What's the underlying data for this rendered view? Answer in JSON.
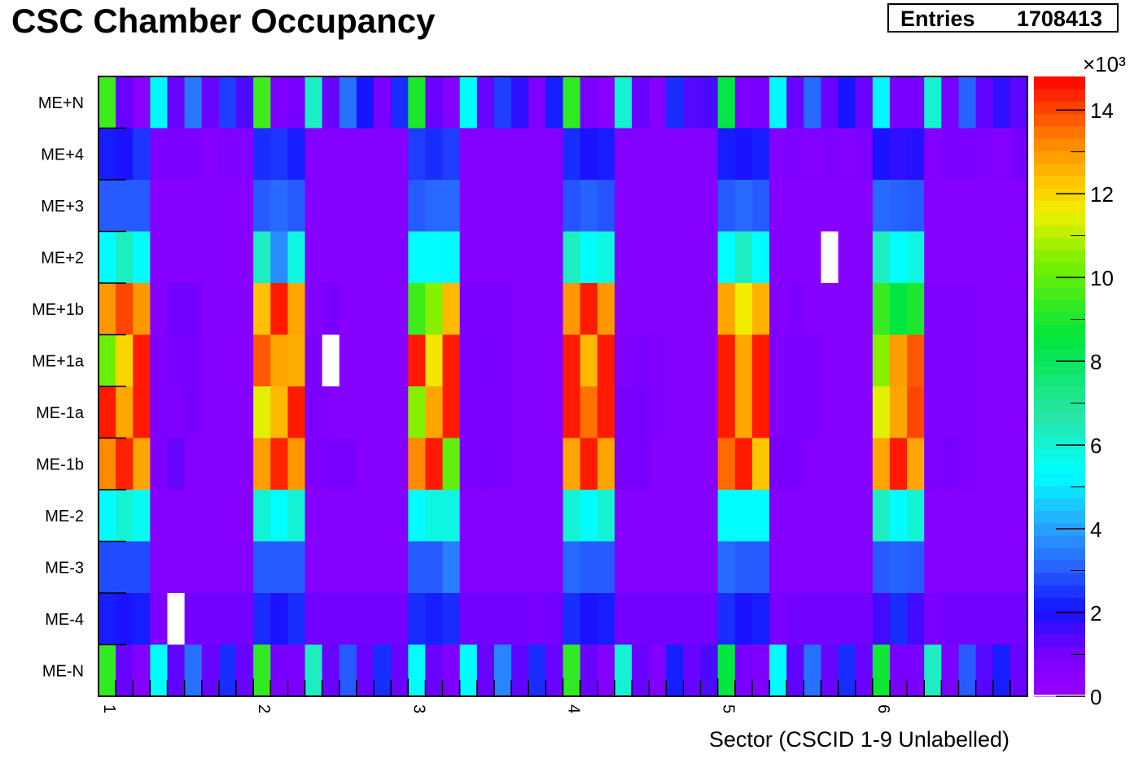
{
  "chart_data": {
    "type": "heatmap",
    "title": "CSC Chamber Occupancy",
    "stats": {
      "label": "Entries",
      "value": "1708413"
    },
    "xlabel": "Sector (CSCID 1-9 Unlabelled)",
    "x_tick_labels": [
      "1",
      "2",
      "3",
      "4",
      "5",
      "6"
    ],
    "y_labels": [
      "ME+N",
      "ME+4",
      "ME+3",
      "ME+2",
      "ME+1b",
      "ME+1a",
      "ME-1a",
      "ME-1b",
      "ME-2",
      "ME-3",
      "ME-4",
      "ME-N"
    ],
    "n_columns": 54,
    "z_scale_label": "×10³",
    "z_range": [
      0,
      14800
    ],
    "z_ticks": [
      0,
      2,
      4,
      6,
      8,
      10,
      12,
      14
    ],
    "values_note": "rows listed top to bottom (ME+N first), columns left to right (sector 1 CSCID 1 to sector 6 CSCID 9); null = empty bin",
    "values": [
      [
        9500,
        1200,
        500,
        5200,
        1200,
        3400,
        1200,
        2600,
        1500,
        9500,
        800,
        1000,
        6200,
        1200,
        3300,
        2100,
        1000,
        2400,
        9000,
        1200,
        700,
        5300,
        1200,
        2600,
        1800,
        800,
        2200,
        9300,
        1000,
        500,
        6000,
        1200,
        700,
        2400,
        1400,
        1500,
        8400,
        800,
        1000,
        5200,
        1200,
        3200,
        1200,
        2100,
        1200,
        5200,
        1000,
        1000,
        6000,
        1000,
        3100,
        1300,
        1800,
        1300
      ],
      [
        2200,
        2000,
        2500,
        900,
        900,
        900,
        600,
        800,
        800,
        2400,
        2500,
        2200,
        700,
        700,
        700,
        700,
        700,
        700,
        2600,
        2400,
        2600,
        700,
        700,
        700,
        700,
        700,
        700,
        2400,
        2000,
        2200,
        700,
        700,
        700,
        700,
        700,
        700,
        2200,
        2000,
        2200,
        700,
        800,
        700,
        800,
        700,
        800,
        2000,
        1800,
        1900,
        700,
        900,
        900,
        800,
        700,
        1000
      ],
      [
        3000,
        3000,
        3000,
        600,
        600,
        600,
        600,
        600,
        600,
        3000,
        3200,
        3000,
        600,
        600,
        600,
        600,
        600,
        600,
        3000,
        3200,
        3200,
        600,
        600,
        600,
        600,
        600,
        600,
        2900,
        3100,
        2900,
        600,
        600,
        600,
        600,
        600,
        600,
        3000,
        3200,
        3000,
        600,
        600,
        600,
        600,
        600,
        600,
        3200,
        3100,
        3000,
        600,
        600,
        600,
        600,
        600,
        600
      ],
      [
        5300,
        6300,
        5300,
        600,
        600,
        600,
        600,
        600,
        600,
        6300,
        3700,
        5800,
        600,
        600,
        600,
        600,
        600,
        600,
        5300,
        5300,
        5300,
        600,
        600,
        600,
        600,
        600,
        600,
        6300,
        5300,
        5800,
        600,
        600,
        600,
        600,
        600,
        600,
        5300,
        6300,
        5300,
        600,
        600,
        600,
        null,
        600,
        600,
        6300,
        5300,
        5800,
        600,
        600,
        600,
        600,
        600,
        600
      ],
      [
        13000,
        14000,
        13000,
        700,
        1100,
        1100,
        600,
        600,
        600,
        12400,
        14500,
        12800,
        700,
        1000,
        600,
        600,
        600,
        600,
        9500,
        10500,
        12500,
        900,
        900,
        900,
        600,
        600,
        600,
        13000,
        14500,
        13000,
        600,
        600,
        600,
        600,
        600,
        600,
        12800,
        11600,
        12600,
        700,
        900,
        600,
        600,
        600,
        600,
        9400,
        8500,
        9000,
        800,
        800,
        800,
        600,
        600,
        600
      ],
      [
        10200,
        12000,
        14500,
        800,
        1000,
        1000,
        600,
        600,
        600,
        13800,
        12800,
        12700,
        900,
        null,
        600,
        600,
        600,
        600,
        14500,
        11800,
        14500,
        900,
        1000,
        900,
        600,
        600,
        600,
        14500,
        12500,
        14500,
        800,
        900,
        800,
        600,
        600,
        600,
        14500,
        12800,
        14500,
        800,
        900,
        900,
        600,
        600,
        600,
        10500,
        12900,
        13800,
        800,
        800,
        800,
        600,
        600,
        600
      ],
      [
        14500,
        12800,
        14500,
        800,
        800,
        1000,
        600,
        600,
        600,
        11400,
        12500,
        14500,
        900,
        700,
        700,
        600,
        600,
        600,
        10500,
        12800,
        14500,
        900,
        900,
        900,
        600,
        600,
        600,
        14500,
        13500,
        14500,
        1000,
        1000,
        800,
        600,
        600,
        600,
        14500,
        12800,
        14500,
        800,
        900,
        900,
        600,
        600,
        600,
        11400,
        12800,
        14000,
        800,
        800,
        800,
        600,
        600,
        600
      ],
      [
        13200,
        14400,
        12800,
        800,
        1200,
        700,
        600,
        600,
        600,
        12900,
        14400,
        13000,
        800,
        1000,
        1000,
        600,
        600,
        600,
        13200,
        14500,
        10000,
        900,
        1000,
        900,
        700,
        700,
        600,
        12800,
        14500,
        12800,
        1000,
        1000,
        700,
        600,
        600,
        600,
        13600,
        14500,
        12300,
        1000,
        1000,
        700,
        600,
        600,
        600,
        12800,
        14500,
        12800,
        800,
        1000,
        800,
        600,
        600,
        600
      ],
      [
        5300,
        6000,
        5500,
        600,
        600,
        600,
        600,
        600,
        600,
        6000,
        5300,
        6000,
        600,
        600,
        600,
        600,
        600,
        600,
        5300,
        5800,
        5800,
        600,
        600,
        600,
        600,
        600,
        600,
        6000,
        5300,
        6000,
        600,
        600,
        600,
        600,
        600,
        600,
        5300,
        5300,
        5300,
        600,
        600,
        600,
        600,
        600,
        600,
        6300,
        5300,
        6000,
        600,
        600,
        600,
        600,
        600,
        600
      ],
      [
        2800,
        2800,
        2800,
        700,
        700,
        700,
        700,
        700,
        700,
        3000,
        3000,
        3000,
        700,
        700,
        700,
        700,
        700,
        700,
        3000,
        3000,
        3500,
        700,
        700,
        700,
        700,
        700,
        700,
        3200,
        3000,
        3000,
        700,
        700,
        700,
        700,
        700,
        700,
        3200,
        3000,
        3000,
        700,
        700,
        700,
        700,
        700,
        700,
        3000,
        3100,
        3000,
        700,
        700,
        700,
        700,
        700,
        700
      ],
      [
        2200,
        2000,
        2200,
        900,
        null,
        1100,
        1100,
        1100,
        1100,
        2400,
        2000,
        2400,
        1100,
        1100,
        1100,
        1100,
        1100,
        1100,
        2400,
        2200,
        2400,
        1100,
        1100,
        1100,
        1100,
        1000,
        1100,
        2400,
        2000,
        2200,
        1100,
        1100,
        1100,
        1100,
        1100,
        1100,
        2400,
        2000,
        2200,
        1000,
        1100,
        1100,
        1100,
        1100,
        1100,
        1600,
        2400,
        1600,
        1000,
        1100,
        1100,
        1100,
        1100,
        1100
      ],
      [
        9300,
        1200,
        700,
        5300,
        1300,
        3300,
        1200,
        2400,
        1200,
        9300,
        1000,
        900,
        6300,
        1200,
        3000,
        1200,
        2400,
        1200,
        5300,
        1200,
        800,
        5300,
        1200,
        3600,
        1300,
        2400,
        1200,
        9300,
        1200,
        700,
        6000,
        1200,
        800,
        2200,
        1200,
        1500,
        8500,
        1000,
        800,
        5300,
        1300,
        3300,
        1200,
        2400,
        1200,
        8800,
        1000,
        1000,
        6300,
        1000,
        3000,
        1400,
        2200,
        1200
      ]
    ]
  },
  "colors": {
    "frame": "#000000",
    "empty_bin": "#ffffff",
    "palette_low": "#9900ff",
    "palette_high": "#ff0000"
  }
}
